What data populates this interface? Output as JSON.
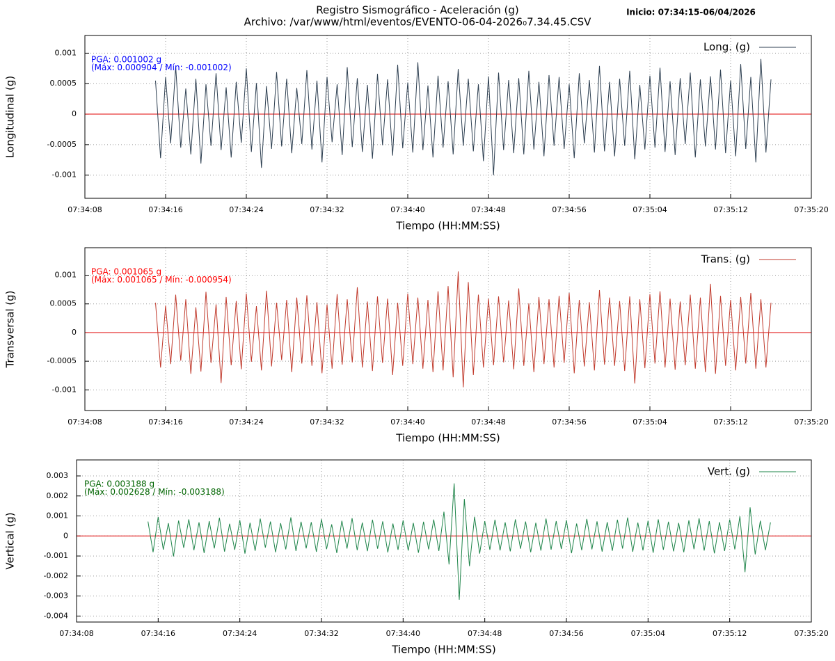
{
  "chart_data": [
    {
      "type": "line",
      "title": "Registro Sismográfico - Aceleración (g)",
      "subtitle": "Archivo: /var/www/html/eventos/EVENTO-06-04-2026₀7.34.45.CSV",
      "start_label": "Inicio: 07:34:15-06/04/2026",
      "xlabel": "Tiempo (HH:MM:SS)",
      "ylabel": "Longitudinal (g)",
      "annotations": [
        "PGA: 0.001002 g",
        "(Máx: 0.000904 / Mín: -0.001002)"
      ],
      "annotation_color": "#0000ff",
      "xlim": [
        27248,
        27320
      ],
      "xticks": [
        {
          "value": 27248,
          "label": "07:34:08"
        },
        {
          "value": 27256,
          "label": "07:34:16"
        },
        {
          "value": 27264,
          "label": "07:34:24"
        },
        {
          "value": 27272,
          "label": "07:34:32"
        },
        {
          "value": 27280,
          "label": "07:34:40"
        },
        {
          "value": 27288,
          "label": "07:34:48"
        },
        {
          "value": 27296,
          "label": "07:34:56"
        },
        {
          "value": 27304,
          "label": "07:35:04"
        },
        {
          "value": 27312,
          "label": "07:35:12"
        },
        {
          "value": 27320,
          "label": "07:35:20"
        }
      ],
      "ylim": [
        -0.00138,
        0.00129
      ],
      "yticks": [
        0.001,
        0.0005,
        0,
        -0.0005,
        -0.001
      ],
      "grid": true,
      "legend": "upper right",
      "x": [
        27255,
        27255.5,
        27256,
        27256.5,
        27257,
        27257.5,
        27258,
        27258.5,
        27259,
        27259.5,
        27260,
        27260.5,
        27261,
        27261.5,
        27262,
        27262.5,
        27263,
        27263.5,
        27264,
        27264.5,
        27265,
        27265.5,
        27266,
        27266.5,
        27267,
        27267.5,
        27268,
        27268.5,
        27269,
        27269.5,
        27270,
        27270.5,
        27271,
        27271.5,
        27272,
        27272.5,
        27273,
        27273.5,
        27274,
        27274.5,
        27275,
        27275.5,
        27276,
        27276.5,
        27277,
        27277.5,
        27278,
        27278.5,
        27279,
        27279.5,
        27280,
        27280.5,
        27281,
        27281.5,
        27282,
        27282.5,
        27283,
        27283.5,
        27284,
        27284.5,
        27285,
        27285.5,
        27286,
        27286.5,
        27287,
        27287.5,
        27288,
        27288.5,
        27289,
        27289.5,
        27290,
        27290.5,
        27291,
        27291.5,
        27292,
        27292.5,
        27293,
        27293.5,
        27294,
        27294.5,
        27295,
        27295.5,
        27296,
        27296.5,
        27297,
        27297.5,
        27298,
        27298.5,
        27299,
        27299.5,
        27300,
        27300.5,
        27301,
        27301.5,
        27302,
        27302.5,
        27303,
        27303.5,
        27304,
        27304.5,
        27305,
        27305.5,
        27306,
        27306.5,
        27307,
        27307.5,
        27308,
        27308.5,
        27309,
        27309.5,
        27310,
        27310.5,
        27311,
        27311.5,
        27312,
        27312.5,
        27313,
        27313.5,
        27314,
        27314.5,
        27315,
        27315.5,
        27316
      ],
      "series": [
        {
          "name": "Long. (g)",
          "color": "#2c3e50",
          "values": [
            0.00055,
            -0.00072,
            0.00061,
            -0.00048,
            0.00078,
            -0.00055,
            0.00042,
            -0.00066,
            0.00058,
            -0.00081,
            0.00049,
            -0.00052,
            0.00067,
            -0.00059,
            0.00044,
            -0.00071,
            0.00053,
            -0.00047,
            0.00075,
            -0.00062,
            0.00051,
            -0.00088,
            0.00046,
            -0.00057,
            0.00069,
            -0.00053,
            0.00058,
            -0.00064,
            0.00043,
            -0.00049,
            0.00072,
            -0.00058,
            0.00055,
            -0.00079,
            0.00061,
            -0.00046,
            0.00049,
            -0.00067,
            0.00077,
            -0.00054,
            0.00059,
            -0.00062,
            0.00048,
            -0.00073,
            0.00066,
            -0.00051,
            0.00057,
            -0.00068,
            0.00081,
            -0.00056,
            0.00052,
            -0.00063,
            0.00085,
            -0.00059,
            0.00047,
            -0.00071,
            0.00063,
            -0.00055,
            0.00054,
            -0.00066,
            0.00074,
            -0.00052,
            0.00058,
            -0.00061,
            0.00049,
            -0.00077,
            0.00062,
            -0.001002,
            0.00068,
            -0.00059,
            0.00056,
            -0.00064,
            0.00059,
            -0.00066,
            0.00071,
            -0.00058,
            0.00053,
            -0.00069,
            0.00064,
            -0.00052,
            0.00061,
            -0.00057,
            0.00049,
            -0.00072,
            0.00067,
            -0.00048,
            0.00056,
            -0.00063,
            0.00079,
            -0.00061,
            0.00053,
            -0.00069,
            0.00058,
            -0.00052,
            0.00071,
            -0.00074,
            0.00048,
            -0.00058,
            0.00063,
            -0.00055,
            0.00076,
            -0.00062,
            0.00054,
            -0.00067,
            0.00059,
            -0.00049,
            0.00068,
            -0.00071,
            0.00057,
            -0.00053,
            0.00062,
            -0.00058,
            0.00073,
            -0.00064,
            0.00055,
            -0.00069,
            0.00082,
            -0.00057,
            0.00061,
            -0.00079,
            0.000904,
            -0.00063,
            0.00057
          ]
        }
      ]
    },
    {
      "type": "line",
      "xlabel": "Tiempo (HH:MM:SS)",
      "ylabel": "Transversal (g)",
      "annotations": [
        "PGA: 0.001065 g",
        "(Máx: 0.001065 / Mín: -0.000954)"
      ],
      "annotation_color": "#ff0000",
      "xlim": [
        27248,
        27320
      ],
      "xticks": [
        {
          "value": 27248,
          "label": "07:34:08"
        },
        {
          "value": 27256,
          "label": "07:34:16"
        },
        {
          "value": 27264,
          "label": "07:34:24"
        },
        {
          "value": 27272,
          "label": "07:34:32"
        },
        {
          "value": 27280,
          "label": "07:34:40"
        },
        {
          "value": 27288,
          "label": "07:34:48"
        },
        {
          "value": 27296,
          "label": "07:34:56"
        },
        {
          "value": 27304,
          "label": "07:35:04"
        },
        {
          "value": 27312,
          "label": "07:35:12"
        },
        {
          "value": 27320,
          "label": "07:35:20"
        }
      ],
      "ylim": [
        -0.00136,
        0.00148
      ],
      "yticks": [
        0.001,
        0.0005,
        0,
        -0.0005,
        -0.001
      ],
      "grid": true,
      "legend": "upper right",
      "x": [
        27255,
        27255.5,
        27256,
        27256.5,
        27257,
        27257.5,
        27258,
        27258.5,
        27259,
        27259.5,
        27260,
        27260.5,
        27261,
        27261.5,
        27262,
        27262.5,
        27263,
        27263.5,
        27264,
        27264.5,
        27265,
        27265.5,
        27266,
        27266.5,
        27267,
        27267.5,
        27268,
        27268.5,
        27269,
        27269.5,
        27270,
        27270.5,
        27271,
        27271.5,
        27272,
        27272.5,
        27273,
        27273.5,
        27274,
        27274.5,
        27275,
        27275.5,
        27276,
        27276.5,
        27277,
        27277.5,
        27278,
        27278.5,
        27279,
        27279.5,
        27280,
        27280.5,
        27281,
        27281.5,
        27282,
        27282.5,
        27283,
        27283.5,
        27284,
        27284.5,
        27285,
        27285.5,
        27286,
        27286.5,
        27287,
        27287.5,
        27288,
        27288.5,
        27289,
        27289.5,
        27290,
        27290.5,
        27291,
        27291.5,
        27292,
        27292.5,
        27293,
        27293.5,
        27294,
        27294.5,
        27295,
        27295.5,
        27296,
        27296.5,
        27297,
        27297.5,
        27298,
        27298.5,
        27299,
        27299.5,
        27300,
        27300.5,
        27301,
        27301.5,
        27302,
        27302.5,
        27303,
        27303.5,
        27304,
        27304.5,
        27305,
        27305.5,
        27306,
        27306.5,
        27307,
        27307.5,
        27308,
        27308.5,
        27309,
        27309.5,
        27310,
        27310.5,
        27311,
        27311.5,
        27312,
        27312.5,
        27313,
        27313.5,
        27314,
        27314.5,
        27315,
        27315.5,
        27316
      ],
      "series": [
        {
          "name": "Trans. (g)",
          "color": "#c0392b",
          "values": [
            0.00052,
            -0.00061,
            0.00047,
            -0.00055,
            0.00066,
            -0.00049,
            0.00058,
            -0.00072,
            0.00044,
            -0.00068,
            0.00071,
            -0.00053,
            0.00049,
            -0.00088,
            0.00062,
            -0.00057,
            0.00055,
            -0.00064,
            0.00068,
            -0.00051,
            0.00046,
            -0.00066,
            0.00073,
            -0.00059,
            0.00052,
            -0.00048,
            0.00057,
            -0.00069,
            0.00061,
            -0.00054,
            0.00065,
            -0.00058,
            0.00053,
            -0.00071,
            0.00049,
            -0.00063,
            0.00067,
            -0.00056,
            0.00058,
            -0.00052,
            0.00079,
            -0.00061,
            0.00054,
            -0.00067,
            0.00063,
            -0.00053,
            0.00059,
            -0.00074,
            0.00052,
            -0.00058,
            0.00068,
            -0.00055,
            0.00061,
            -0.00063,
            0.00057,
            -0.00069,
            0.00072,
            -0.00066,
            0.00081,
            -0.00078,
            0.001065,
            -0.000954,
            0.00088,
            -0.00074,
            0.00066,
            -0.00061,
            0.00059,
            -0.00057,
            0.00063,
            -0.00052,
            0.00056,
            -0.00064,
            0.00077,
            -0.00058,
            0.00051,
            -0.00069,
            0.00062,
            -0.00055,
            0.00058,
            -0.00061,
            0.00064,
            -0.00053,
            0.00069,
            -0.00071,
            0.00057,
            -0.00059,
            0.00053,
            -0.00066,
            0.00074,
            -0.00056,
            0.00061,
            -0.00058,
            0.00055,
            -0.00067,
            0.00063,
            -0.00089,
            0.00058,
            -0.00062,
            0.00067,
            -0.00054,
            0.00072,
            -0.00061,
            0.00059,
            -0.00065,
            0.00054,
            -0.00057,
            0.00066,
            -0.00063,
            0.00061,
            -0.00069,
            0.00085,
            -0.00072,
            0.00064,
            -0.00058,
            0.00057,
            -0.00066,
            0.00062,
            -0.00054,
            0.00069,
            -0.00063,
            0.00058,
            -0.00061,
            0.00052
          ]
        }
      ]
    },
    {
      "type": "line",
      "xlabel": "Tiempo (HH:MM:SS)",
      "ylabel": "Vertical (g)",
      "annotations": [
        "PGA: 0.003188 g",
        "(Máx: 0.002628 / Mín: -0.003188)"
      ],
      "annotation_color": "#006400",
      "xlim": [
        27248,
        27320
      ],
      "xticks": [
        {
          "value": 27248,
          "label": "07:34:08"
        },
        {
          "value": 27256,
          "label": "07:34:16"
        },
        {
          "value": 27264,
          "label": "07:34:24"
        },
        {
          "value": 27272,
          "label": "07:34:32"
        },
        {
          "value": 27280,
          "label": "07:34:40"
        },
        {
          "value": 27288,
          "label": "07:34:48"
        },
        {
          "value": 27296,
          "label": "07:34:56"
        },
        {
          "value": 27304,
          "label": "07:35:04"
        },
        {
          "value": 27312,
          "label": "07:35:12"
        },
        {
          "value": 27320,
          "label": "07:35:20"
        }
      ],
      "ylim": [
        -0.0043,
        0.0038
      ],
      "yticks": [
        0.003,
        0.002,
        0.001,
        0,
        -0.001,
        -0.002,
        -0.003,
        -0.004
      ],
      "grid": true,
      "legend": "upper right",
      "x": [
        27255,
        27255.5,
        27256,
        27256.5,
        27257,
        27257.5,
        27258,
        27258.5,
        27259,
        27259.5,
        27260,
        27260.5,
        27261,
        27261.5,
        27262,
        27262.5,
        27263,
        27263.5,
        27264,
        27264.5,
        27265,
        27265.5,
        27266,
        27266.5,
        27267,
        27267.5,
        27268,
        27268.5,
        27269,
        27269.5,
        27270,
        27270.5,
        27271,
        27271.5,
        27272,
        27272.5,
        27273,
        27273.5,
        27274,
        27274.5,
        27275,
        27275.5,
        27276,
        27276.5,
        27277,
        27277.5,
        27278,
        27278.5,
        27279,
        27279.5,
        27280,
        27280.5,
        27281,
        27281.5,
        27282,
        27282.5,
        27283,
        27283.5,
        27284,
        27284.5,
        27285,
        27285.5,
        27286,
        27286.5,
        27287,
        27287.5,
        27288,
        27288.5,
        27289,
        27289.5,
        27290,
        27290.5,
        27291,
        27291.5,
        27292,
        27292.5,
        27293,
        27293.5,
        27294,
        27294.5,
        27295,
        27295.5,
        27296,
        27296.5,
        27297,
        27297.5,
        27298,
        27298.5,
        27299,
        27299.5,
        27300,
        27300.5,
        27301,
        27301.5,
        27302,
        27302.5,
        27303,
        27303.5,
        27304,
        27304.5,
        27305,
        27305.5,
        27306,
        27306.5,
        27307,
        27307.5,
        27308,
        27308.5,
        27309,
        27309.5,
        27310,
        27310.5,
        27311,
        27311.5,
        27312,
        27312.5,
        27313,
        27313.5,
        27314,
        27314.5,
        27315,
        27315.5,
        27316
      ],
      "series": [
        {
          "name": "Vert. (g)",
          "color": "#1e8449",
          "values": [
            0.00072,
            -0.00081,
            0.00095,
            -0.00068,
            0.00064,
            -0.00102,
            0.00077,
            -0.00059,
            0.00083,
            -0.00071,
            0.00068,
            -0.00085,
            0.00074,
            -0.00062,
            0.00091,
            -0.00078,
            0.00061,
            -0.00069,
            0.00079,
            -0.00088,
            0.00066,
            -0.00074,
            0.00087,
            -0.00058,
            0.00072,
            -0.00081,
            0.00064,
            -0.00067,
            0.00093,
            -0.00075,
            0.00071,
            -0.00062,
            0.00069,
            -0.00079,
            0.00084,
            -0.00066,
            0.00058,
            -0.00085,
            0.00076,
            -0.00063,
            0.00089,
            -0.00071,
            0.00067,
            -0.00076,
            0.00081,
            -0.00064,
            0.00073,
            -0.00082,
            0.00062,
            -0.00069,
            0.00078,
            -0.00073,
            0.00065,
            -0.00084,
            0.00071,
            -0.00067,
            0.00082,
            -0.00075,
            0.00121,
            -0.00142,
            0.002628,
            -0.003188,
            0.00185,
            -0.00151,
            0.00096,
            -0.00088,
            0.00074,
            -0.00069,
            0.00081,
            -0.00072,
            0.00068,
            -0.00077,
            0.00083,
            -0.00064,
            0.00072,
            -0.00081,
            0.00066,
            -0.00073,
            0.00087,
            -0.00068,
            0.00074,
            -0.00065,
            0.00079,
            -0.00086,
            0.00062,
            -0.00071,
            0.00085,
            -0.00067,
            0.00073,
            -0.00078,
            0.00069,
            -0.00074,
            0.00081,
            -0.00063,
            0.00092,
            -0.00079,
            0.00067,
            -0.00072,
            0.00076,
            -0.00084,
            0.00083,
            -0.00069,
            0.00071,
            -0.00077,
            0.00065,
            -0.00081,
            0.00078,
            -0.00066,
            0.00088,
            -0.00073,
            0.00074,
            -0.00087,
            0.00069,
            -0.00075,
            0.00082,
            -0.00067,
            0.00098,
            -0.00181,
            0.00143,
            -0.00092,
            0.00076,
            -0.00071,
            0.00068
          ]
        }
      ]
    }
  ]
}
